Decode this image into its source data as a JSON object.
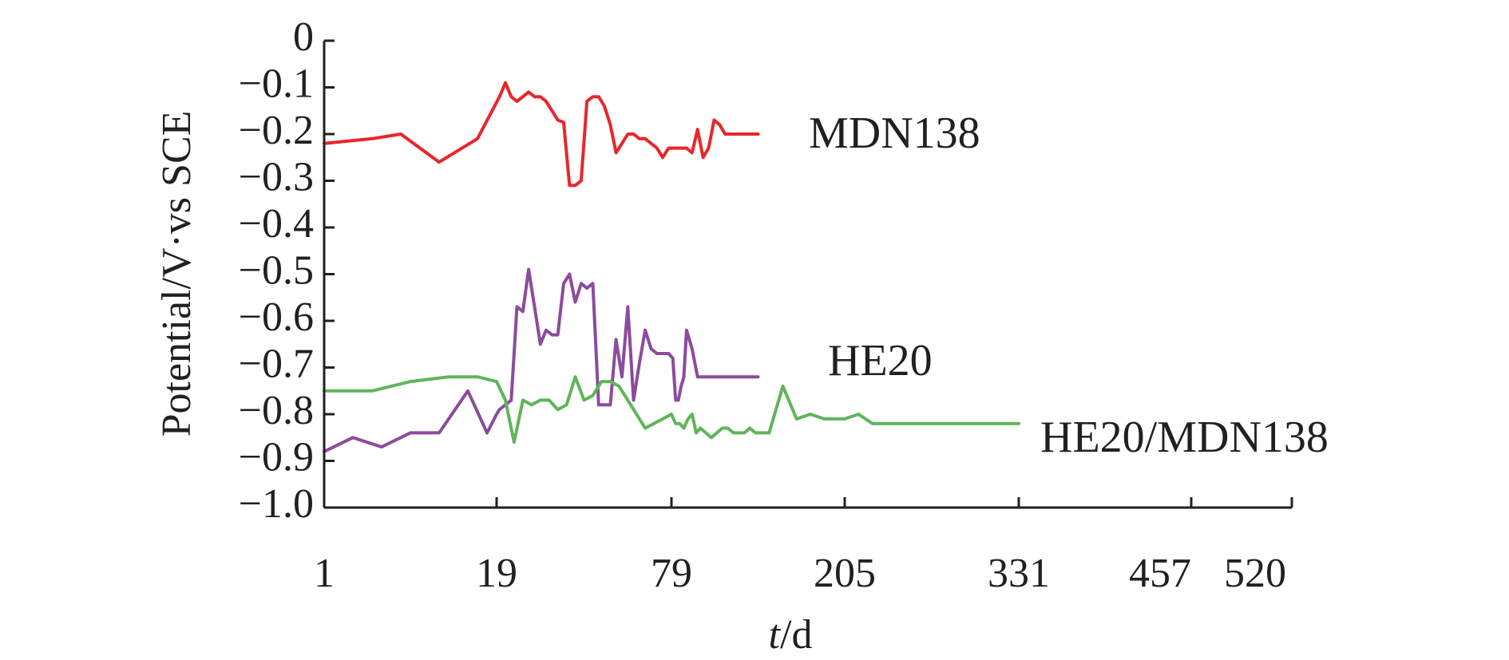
{
  "chart_data": {
    "type": "line",
    "title": "",
    "xlabel_italic": "t",
    "xlabel_rest": "/d",
    "ylabel": "Potential/V·vs SCE",
    "ylim": [
      -1.0,
      0
    ],
    "yticks": [
      0,
      -0.1,
      -0.2,
      -0.3,
      -0.4,
      -0.5,
      -0.6,
      -0.7,
      -0.8,
      -0.9,
      -1.0
    ],
    "ytick_labels": [
      "0",
      "−0.1",
      "−0.2",
      "−0.3",
      "−0.4",
      "−0.5",
      "−0.6",
      "−0.7",
      "−0.8",
      "−0.9",
      "−1.0"
    ],
    "x_axis_note": "tick labels are not evenly spaced in value",
    "x_ticks": [
      1,
      19,
      79,
      205,
      331,
      457,
      520
    ],
    "x_tick_labels": [
      "1",
      "19",
      "79",
      "205",
      "331",
      "457",
      "520"
    ],
    "grid": false,
    "legend": "labels placed at right end of each series",
    "series": [
      {
        "name": "MDN138",
        "color": "#e8262b",
        "x": [
          1,
          6,
          9,
          13,
          17,
          20,
          22,
          24,
          26,
          28,
          30,
          32,
          34,
          36,
          38,
          40,
          42,
          44,
          46,
          48,
          50,
          52,
          54,
          56,
          58,
          60,
          62,
          64,
          66,
          68,
          70,
          72,
          74,
          76,
          78,
          82,
          86,
          90,
          94,
          98,
          102,
          106,
          110,
          114,
          118,
          122,
          126,
          130,
          134,
          138,
          142
        ],
        "y": [
          -0.22,
          -0.21,
          -0.2,
          -0.26,
          -0.21,
          -0.12,
          -0.09,
          -0.12,
          -0.13,
          -0.12,
          -0.11,
          -0.12,
          -0.12,
          -0.13,
          -0.15,
          -0.17,
          -0.175,
          -0.31,
          -0.31,
          -0.3,
          -0.13,
          -0.12,
          -0.12,
          -0.14,
          -0.18,
          -0.24,
          -0.22,
          -0.2,
          -0.2,
          -0.21,
          -0.21,
          -0.22,
          -0.23,
          -0.25,
          -0.23,
          -0.23,
          -0.23,
          -0.23,
          -0.24,
          -0.19,
          -0.25,
          -0.23,
          -0.17,
          -0.18,
          -0.2,
          -0.2,
          -0.2,
          -0.2,
          -0.2,
          -0.2,
          -0.2
        ]
      },
      {
        "name": "HE20",
        "color": "#8c4b9c",
        "x": [
          1,
          4,
          7,
          10,
          13,
          16,
          18,
          19,
          20,
          22,
          24,
          26,
          28,
          30,
          32,
          34,
          36,
          38,
          40,
          42,
          44,
          46,
          48,
          50,
          52,
          54,
          56,
          58,
          60,
          62,
          64,
          66,
          68,
          70,
          72,
          74,
          76,
          78,
          80,
          82,
          84,
          86,
          88,
          90,
          94,
          98,
          102,
          106,
          110,
          114,
          118,
          122,
          126,
          130,
          134,
          138,
          142
        ],
        "y": [
          -0.88,
          -0.85,
          -0.87,
          -0.84,
          -0.84,
          -0.75,
          -0.84,
          -0.8,
          -0.79,
          -0.78,
          -0.77,
          -0.57,
          -0.58,
          -0.49,
          -0.57,
          -0.65,
          -0.62,
          -0.63,
          -0.63,
          -0.52,
          -0.5,
          -0.56,
          -0.52,
          -0.53,
          -0.52,
          -0.78,
          -0.78,
          -0.78,
          -0.64,
          -0.72,
          -0.57,
          -0.77,
          -0.69,
          -0.62,
          -0.66,
          -0.67,
          -0.67,
          -0.67,
          -0.68,
          -0.77,
          -0.77,
          -0.74,
          -0.72,
          -0.62,
          -0.66,
          -0.72,
          -0.72,
          -0.72,
          -0.72,
          -0.72,
          -0.72,
          -0.72,
          -0.72,
          -0.72,
          -0.72,
          -0.72,
          -0.72
        ]
      },
      {
        "name": "HE20/MDN138",
        "color": "#5fb55a",
        "x": [
          1,
          6,
          10,
          14,
          17,
          19,
          22,
          25,
          28,
          31,
          34,
          37,
          40,
          43,
          46,
          49,
          52,
          55,
          58,
          61,
          64,
          67,
          70,
          73,
          76,
          79,
          82,
          85,
          88,
          91,
          94,
          97,
          100,
          104,
          108,
          112,
          116,
          120,
          124,
          128,
          132,
          136,
          140,
          145,
          150,
          160,
          170,
          180,
          190,
          205,
          215,
          225,
          235,
          245,
          255,
          265,
          275,
          285,
          300,
          315,
          331
        ],
        "y": [
          -0.75,
          -0.75,
          -0.73,
          -0.72,
          -0.72,
          -0.73,
          -0.77,
          -0.86,
          -0.77,
          -0.78,
          -0.77,
          -0.77,
          -0.79,
          -0.78,
          -0.72,
          -0.77,
          -0.76,
          -0.73,
          -0.73,
          -0.74,
          -0.77,
          -0.8,
          -0.83,
          -0.82,
          -0.81,
          -0.8,
          -0.82,
          -0.82,
          -0.83,
          -0.81,
          -0.8,
          -0.84,
          -0.83,
          -0.84,
          -0.85,
          -0.84,
          -0.83,
          -0.83,
          -0.84,
          -0.84,
          -0.84,
          -0.83,
          -0.84,
          -0.84,
          -0.84,
          -0.74,
          -0.81,
          -0.8,
          -0.81,
          -0.81,
          -0.8,
          -0.82,
          -0.82,
          -0.82,
          -0.82,
          -0.82,
          -0.82,
          -0.82,
          -0.82,
          -0.82,
          -0.82
        ]
      }
    ]
  }
}
